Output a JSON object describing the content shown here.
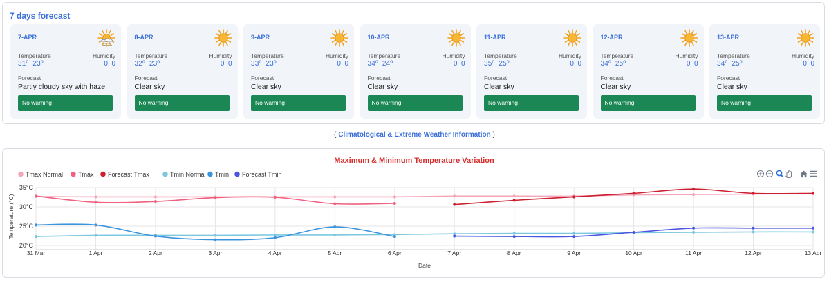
{
  "forecast_panel": {
    "title": "7 days forecast",
    "temp_label": "Temperature",
    "humidity_label": "Humidity",
    "forecast_label": "Forecast",
    "days": [
      {
        "date": "7-APR",
        "tmax": "31º",
        "tmin": "23º",
        "hum1": "0",
        "hum2": "0",
        "forecast": "Partly cloudy sky with haze",
        "warning": "No warning",
        "icon": "partly-cloudy-haze-icon"
      },
      {
        "date": "8-APR",
        "tmax": "32º",
        "tmin": "23º",
        "hum1": "0",
        "hum2": "0",
        "forecast": "Clear sky",
        "warning": "No warning",
        "icon": "sun-icon"
      },
      {
        "date": "9-APR",
        "tmax": "33º",
        "tmin": "23º",
        "hum1": "0",
        "hum2": "0",
        "forecast": "Clear sky",
        "warning": "No warning",
        "icon": "sun-icon"
      },
      {
        "date": "10-APR",
        "tmax": "34º",
        "tmin": "24º",
        "hum1": "0",
        "hum2": "0",
        "forecast": "Clear sky",
        "warning": "No warning",
        "icon": "sun-icon"
      },
      {
        "date": "11-APR",
        "tmax": "35º",
        "tmin": "25º",
        "hum1": "0",
        "hum2": "0",
        "forecast": "Clear sky",
        "warning": "No warning",
        "icon": "sun-icon"
      },
      {
        "date": "12-APR",
        "tmax": "34º",
        "tmin": "25º",
        "hum1": "0",
        "hum2": "0",
        "forecast": "Clear sky",
        "warning": "No warning",
        "icon": "sun-icon"
      },
      {
        "date": "13-APR",
        "tmax": "34º",
        "tmin": "25º",
        "hum1": "0",
        "hum2": "0",
        "forecast": "Clear sky",
        "warning": "No warning",
        "icon": "sun-icon"
      }
    ]
  },
  "link": {
    "open": "(",
    "text": "Climatological & Extreme Weather Information",
    "close": ")"
  },
  "chart_data": {
    "type": "line",
    "title": "Maximum & Minimum Temperature Variation",
    "xlabel": "Date",
    "ylabel": "Temperature (°C)",
    "ylim": [
      20,
      35
    ],
    "yticks": [
      "35°C",
      "30°C",
      "25°C",
      "20°C"
    ],
    "ytick_values": [
      35,
      30,
      25,
      20
    ],
    "categories": [
      "31 Mar",
      "1 Apr",
      "2 Apr",
      "3 Apr",
      "4 Apr",
      "5 Apr",
      "6 Apr",
      "7 Apr",
      "8 Apr",
      "9 Apr",
      "10 Apr",
      "11 Apr",
      "12 Apr",
      "13 Apr"
    ],
    "grid": true,
    "legend_position": "top-left",
    "series": [
      {
        "name": "Tmax Normal",
        "color": "#f5a5b8",
        "values": [
          32.7,
          32.6,
          32.6,
          32.6,
          32.6,
          32.6,
          32.6,
          32.8,
          32.8,
          32.8,
          33.1,
          33.2,
          33.3,
          33.4
        ]
      },
      {
        "name": "Tmax",
        "color": "#f0607f",
        "values": [
          32.8,
          31.2,
          31.4,
          32.4,
          32.5,
          30.8,
          30.9,
          null,
          null,
          null,
          null,
          null,
          null,
          null
        ]
      },
      {
        "name": "Forecast Tmax",
        "color": "#cc1f2f",
        "values": [
          null,
          null,
          null,
          null,
          null,
          null,
          null,
          30.6,
          31.7,
          32.6,
          33.5,
          34.6,
          33.5,
          33.5
        ]
      },
      {
        "name": "Tmin Normal",
        "color": "#7cc7e0",
        "values": [
          22.3,
          22.6,
          22.6,
          22.6,
          22.7,
          22.7,
          22.8,
          23.0,
          23.1,
          23.1,
          23.3,
          23.4,
          23.5,
          23.5
        ]
      },
      {
        "name": "Tmin",
        "color": "#3b93de",
        "values": [
          25.3,
          25.3,
          22.4,
          21.5,
          22.0,
          24.8,
          22.3,
          null,
          null,
          null,
          null,
          null,
          null,
          null
        ]
      },
      {
        "name": "Forecast Tmin",
        "color": "#4b55e0",
        "values": [
          null,
          null,
          null,
          null,
          null,
          null,
          null,
          22.4,
          22.3,
          22.3,
          23.4,
          24.5,
          24.5,
          24.5
        ]
      }
    ]
  },
  "toolbar": {
    "zoom_in": "zoom-in-icon",
    "zoom_out": "zoom-out-icon",
    "zoom_select": "magnifier-icon",
    "pan": "hand-pan-icon",
    "reset": "home-icon",
    "menu": "menu-icon"
  }
}
